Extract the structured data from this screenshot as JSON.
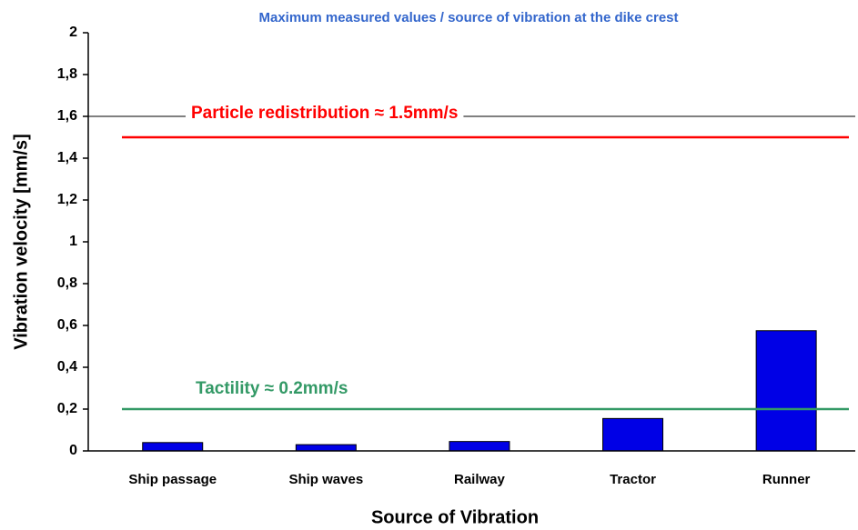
{
  "chart_data": {
    "type": "bar",
    "title": "Maximum measured values / source of vibration at the dike crest",
    "x_label": "Source of Vibration",
    "y_label": "Vibration velocity [mm/s]",
    "categories": [
      "Ship passage",
      "Ship waves",
      "Railway",
      "Tractor",
      "Runner"
    ],
    "values": [
      0.04,
      0.03,
      0.045,
      0.155,
      0.575
    ],
    "color": "#0000e6",
    "ylim": [
      0,
      2
    ],
    "yticks": [
      0,
      {
        "value": 0.2,
        "label": "0,2"
      },
      {
        "value": 0.4,
        "label": "0,4"
      },
      {
        "value": 0.6,
        "label": "0,6"
      },
      {
        "value": 0.8,
        "label": "0,8"
      },
      1,
      {
        "value": 1.2,
        "label": "1,2"
      },
      {
        "value": 1.4,
        "label": "1,4"
      },
      {
        "value": 1.6,
        "label": "1,6"
      },
      {
        "value": 1.8,
        "label": "1,8"
      },
      2
    ],
    "grid_y": [
      1.6
    ],
    "reference_lines": [
      {
        "label": "Particle redistribution ≈ 1.5mm/s",
        "value": 1.5,
        "color": "#ff0000"
      },
      {
        "label": "Tactility ≈ 0.2mm/s",
        "value": 0.2,
        "color": "#339966"
      }
    ]
  }
}
